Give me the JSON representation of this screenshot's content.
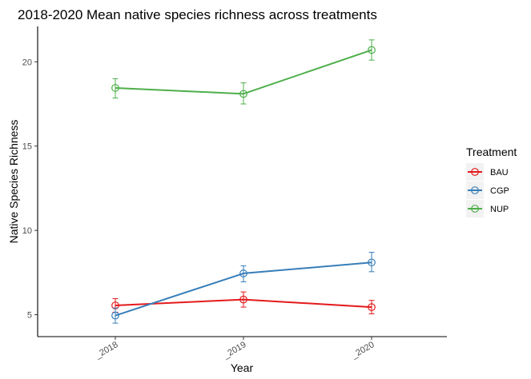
{
  "chart_data": {
    "type": "line",
    "title": "2018-2020 Mean native species richness across treatments",
    "xlabel": "Year",
    "ylabel": "Native Species Richness",
    "categories": [
      "_2018",
      "_2019",
      "_2020"
    ],
    "ylim": [
      3.7,
      22.1
    ],
    "yticks": [
      5,
      10,
      15,
      20
    ],
    "grid": false,
    "legend": {
      "title": "Treatment",
      "position": "right"
    },
    "series": [
      {
        "name": "BAU",
        "color": "#e41a1c",
        "values": [
          5.55,
          5.9,
          5.45
        ],
        "err_low": [
          5.15,
          5.45,
          5.05
        ],
        "err_high": [
          5.95,
          6.35,
          5.85
        ]
      },
      {
        "name": "CGP",
        "color": "#377eb8",
        "values": [
          4.95,
          7.45,
          8.1
        ],
        "err_low": [
          4.5,
          6.95,
          7.55
        ],
        "err_high": [
          5.4,
          7.9,
          8.7
        ]
      },
      {
        "name": "NUP",
        "color": "#4daf4a",
        "values": [
          18.45,
          18.1,
          20.7
        ],
        "err_low": [
          17.85,
          17.5,
          20.1
        ],
        "err_high": [
          19.0,
          18.75,
          21.3
        ]
      }
    ]
  }
}
